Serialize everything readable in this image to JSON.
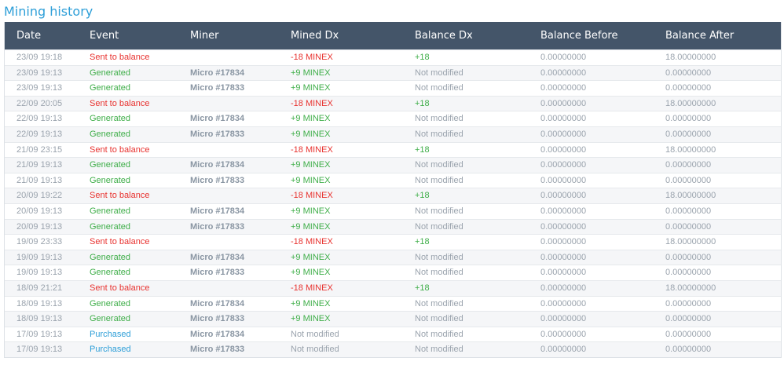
{
  "page": {
    "title": "Mining history"
  },
  "colors": {
    "header_bg": "#445569",
    "title": "#2e9fd8",
    "red": "#e8322f",
    "green": "#3fae49",
    "blue": "#2e9fd8",
    "muted": "#9aa3ad"
  },
  "table": {
    "headers": [
      "Date",
      "Event",
      "Miner",
      "Mined Dx",
      "Balance Dx",
      "Balance Before",
      "Balance After"
    ],
    "rows": [
      {
        "date": "23/09 19:18",
        "event": "Sent to balance",
        "event_type": "sent",
        "miner": "",
        "mined": "-18 MINEX",
        "mined_type": "neg",
        "balance_dx": "+18",
        "balance_type": "pos",
        "before": "0.00000000",
        "after": "18.00000000"
      },
      {
        "date": "23/09 19:13",
        "event": "Generated",
        "event_type": "generated",
        "miner": "Micro #17834",
        "mined": "+9 MINEX",
        "mined_type": "pos",
        "balance_dx": "Not modified",
        "balance_type": "none",
        "before": "0.00000000",
        "after": "0.00000000"
      },
      {
        "date": "23/09 19:13",
        "event": "Generated",
        "event_type": "generated",
        "miner": "Micro #17833",
        "mined": "+9 MINEX",
        "mined_type": "pos",
        "balance_dx": "Not modified",
        "balance_type": "none",
        "before": "0.00000000",
        "after": "0.00000000"
      },
      {
        "date": "22/09 20:05",
        "event": "Sent to balance",
        "event_type": "sent",
        "miner": "",
        "mined": "-18 MINEX",
        "mined_type": "neg",
        "balance_dx": "+18",
        "balance_type": "pos",
        "before": "0.00000000",
        "after": "18.00000000"
      },
      {
        "date": "22/09 19:13",
        "event": "Generated",
        "event_type": "generated",
        "miner": "Micro #17834",
        "mined": "+9 MINEX",
        "mined_type": "pos",
        "balance_dx": "Not modified",
        "balance_type": "none",
        "before": "0.00000000",
        "after": "0.00000000"
      },
      {
        "date": "22/09 19:13",
        "event": "Generated",
        "event_type": "generated",
        "miner": "Micro #17833",
        "mined": "+9 MINEX",
        "mined_type": "pos",
        "balance_dx": "Not modified",
        "balance_type": "none",
        "before": "0.00000000",
        "after": "0.00000000"
      },
      {
        "date": "21/09 23:15",
        "event": "Sent to balance",
        "event_type": "sent",
        "miner": "",
        "mined": "-18 MINEX",
        "mined_type": "neg",
        "balance_dx": "+18",
        "balance_type": "pos",
        "before": "0.00000000",
        "after": "18.00000000"
      },
      {
        "date": "21/09 19:13",
        "event": "Generated",
        "event_type": "generated",
        "miner": "Micro #17834",
        "mined": "+9 MINEX",
        "mined_type": "pos",
        "balance_dx": "Not modified",
        "balance_type": "none",
        "before": "0.00000000",
        "after": "0.00000000"
      },
      {
        "date": "21/09 19:13",
        "event": "Generated",
        "event_type": "generated",
        "miner": "Micro #17833",
        "mined": "+9 MINEX",
        "mined_type": "pos",
        "balance_dx": "Not modified",
        "balance_type": "none",
        "before": "0.00000000",
        "after": "0.00000000"
      },
      {
        "date": "20/09 19:22",
        "event": "Sent to balance",
        "event_type": "sent",
        "miner": "",
        "mined": "-18 MINEX",
        "mined_type": "neg",
        "balance_dx": "+18",
        "balance_type": "pos",
        "before": "0.00000000",
        "after": "18.00000000"
      },
      {
        "date": "20/09 19:13",
        "event": "Generated",
        "event_type": "generated",
        "miner": "Micro #17834",
        "mined": "+9 MINEX",
        "mined_type": "pos",
        "balance_dx": "Not modified",
        "balance_type": "none",
        "before": "0.00000000",
        "after": "0.00000000"
      },
      {
        "date": "20/09 19:13",
        "event": "Generated",
        "event_type": "generated",
        "miner": "Micro #17833",
        "mined": "+9 MINEX",
        "mined_type": "pos",
        "balance_dx": "Not modified",
        "balance_type": "none",
        "before": "0.00000000",
        "after": "0.00000000"
      },
      {
        "date": "19/09 23:33",
        "event": "Sent to balance",
        "event_type": "sent",
        "miner": "",
        "mined": "-18 MINEX",
        "mined_type": "neg",
        "balance_dx": "+18",
        "balance_type": "pos",
        "before": "0.00000000",
        "after": "18.00000000"
      },
      {
        "date": "19/09 19:13",
        "event": "Generated",
        "event_type": "generated",
        "miner": "Micro #17834",
        "mined": "+9 MINEX",
        "mined_type": "pos",
        "balance_dx": "Not modified",
        "balance_type": "none",
        "before": "0.00000000",
        "after": "0.00000000"
      },
      {
        "date": "19/09 19:13",
        "event": "Generated",
        "event_type": "generated",
        "miner": "Micro #17833",
        "mined": "+9 MINEX",
        "mined_type": "pos",
        "balance_dx": "Not modified",
        "balance_type": "none",
        "before": "0.00000000",
        "after": "0.00000000"
      },
      {
        "date": "18/09 21:21",
        "event": "Sent to balance",
        "event_type": "sent",
        "miner": "",
        "mined": "-18 MINEX",
        "mined_type": "neg",
        "balance_dx": "+18",
        "balance_type": "pos",
        "before": "0.00000000",
        "after": "18.00000000"
      },
      {
        "date": "18/09 19:13",
        "event": "Generated",
        "event_type": "generated",
        "miner": "Micro #17834",
        "mined": "+9 MINEX",
        "mined_type": "pos",
        "balance_dx": "Not modified",
        "balance_type": "none",
        "before": "0.00000000",
        "after": "0.00000000"
      },
      {
        "date": "18/09 19:13",
        "event": "Generated",
        "event_type": "generated",
        "miner": "Micro #17833",
        "mined": "+9 MINEX",
        "mined_type": "pos",
        "balance_dx": "Not modified",
        "balance_type": "none",
        "before": "0.00000000",
        "after": "0.00000000"
      },
      {
        "date": "17/09 19:13",
        "event": "Purchased",
        "event_type": "purchased",
        "miner": "Micro #17834",
        "mined": "Not modified",
        "mined_type": "none",
        "balance_dx": "Not modified",
        "balance_type": "none",
        "before": "0.00000000",
        "after": "0.00000000"
      },
      {
        "date": "17/09 19:13",
        "event": "Purchased",
        "event_type": "purchased",
        "miner": "Micro #17833",
        "mined": "Not modified",
        "mined_type": "none",
        "balance_dx": "Not modified",
        "balance_type": "none",
        "before": "0.00000000",
        "after": "0.00000000"
      }
    ]
  }
}
